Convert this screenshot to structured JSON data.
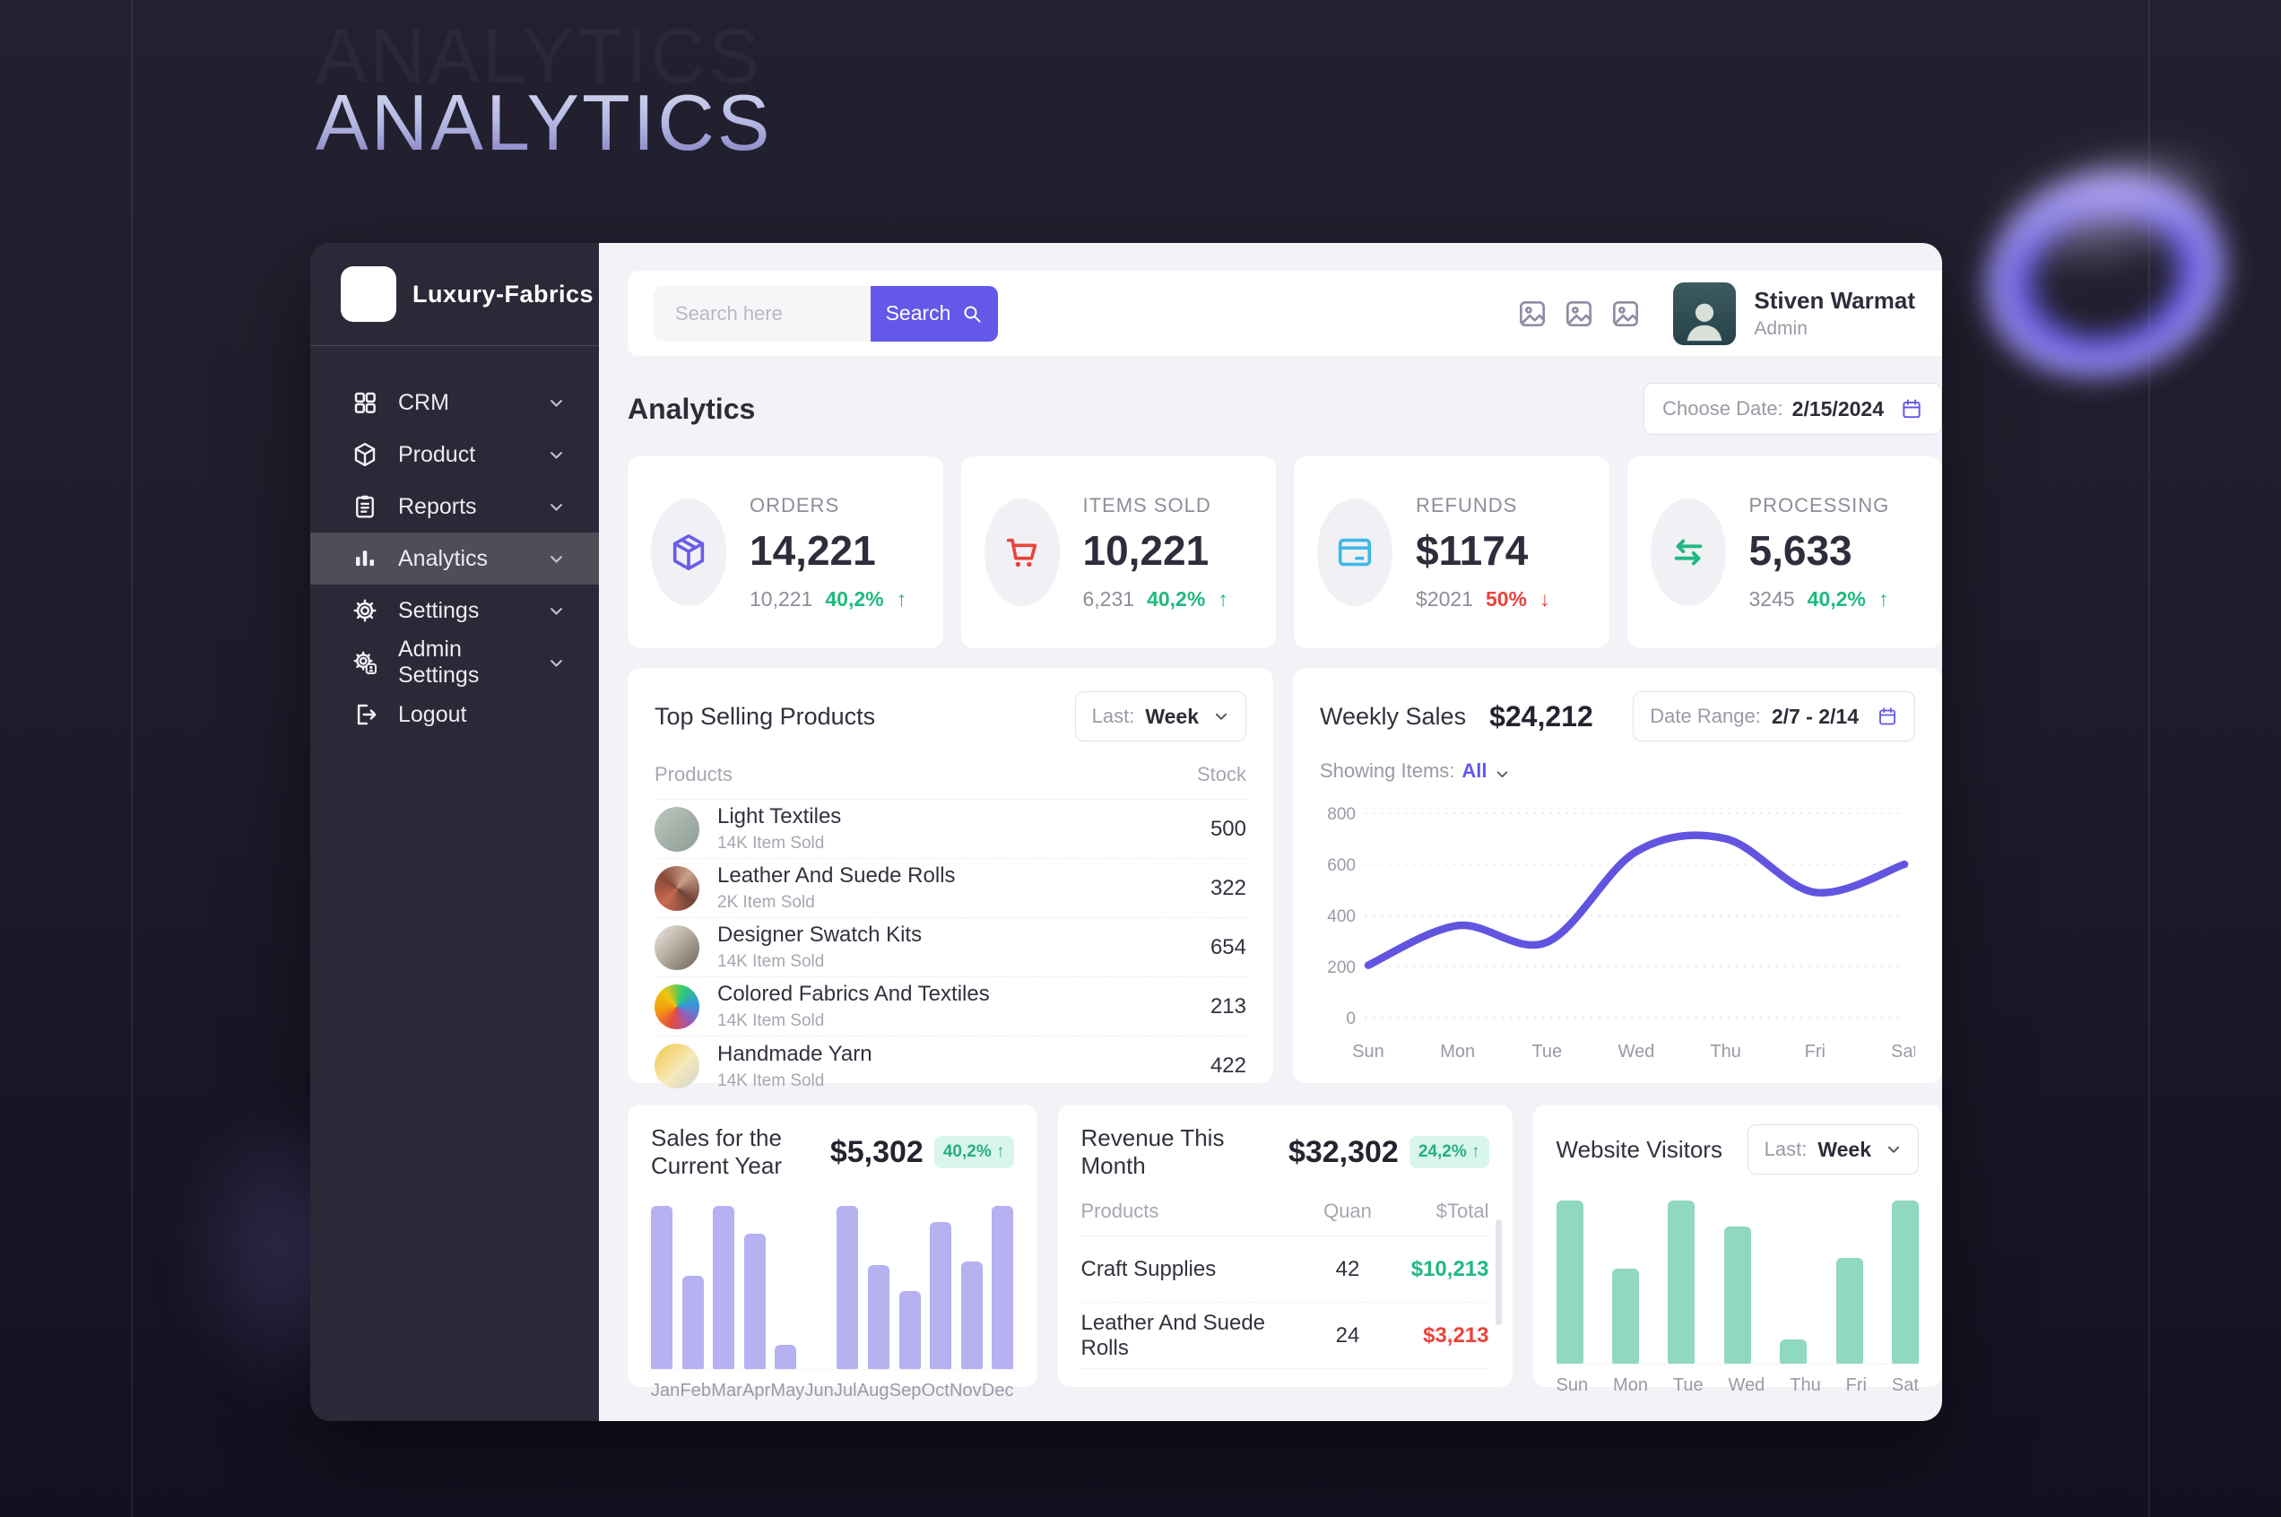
{
  "page": {
    "background_title": "ANALYTICS"
  },
  "sidebar": {
    "brand": {
      "name": "Luxury-Fabrics",
      "icon": "fabric-weave-icon"
    },
    "items": [
      {
        "label": "CRM",
        "icon": "grid-icon",
        "chevron": true,
        "active": false
      },
      {
        "label": "Product",
        "icon": "box-icon",
        "chevron": true,
        "active": false
      },
      {
        "label": "Reports",
        "icon": "clipboard-icon",
        "chevron": true,
        "active": false
      },
      {
        "label": "Analytics",
        "icon": "bar-chart-icon",
        "chevron": true,
        "active": true
      },
      {
        "label": "Settings",
        "icon": "gear-icon",
        "chevron": true,
        "active": false
      },
      {
        "label": "Admin Settings",
        "icon": "admin-gear-icon",
        "chevron": true,
        "active": false
      },
      {
        "label": "Logout",
        "icon": "logout-icon",
        "chevron": false,
        "active": false
      }
    ]
  },
  "topbar": {
    "search_placeholder": "Search here",
    "search_button": "Search",
    "user": {
      "name": "Stiven Warmat",
      "role": "Admin"
    }
  },
  "header": {
    "title": "Analytics",
    "date_label": "Choose Date:",
    "date_value": "2/15/2024"
  },
  "stats": [
    {
      "label": "ORDERS",
      "value": "14,221",
      "sub_value": "10,221",
      "change": "40,2%",
      "direction": "up",
      "icon": "package-icon",
      "accent": "#6c5ce7"
    },
    {
      "label": "ITEMS SOLD",
      "value": "10,221",
      "sub_value": "6,231",
      "change": "40,2%",
      "direction": "up",
      "icon": "cart-icon",
      "accent": "#e8443c"
    },
    {
      "label": "REFUNDS",
      "value": "$1174",
      "sub_value": "$2021",
      "change": "50%",
      "direction": "down",
      "icon": "credit-card-icon",
      "accent": "#3eb7e8"
    },
    {
      "label": "PROCESSING",
      "value": "5,633",
      "sub_value": "3245",
      "change": "40,2%",
      "direction": "up",
      "icon": "swap-icon",
      "accent": "#1fb97f"
    }
  ],
  "top_selling": {
    "title": "Top Selling Products",
    "filter_label": "Last:",
    "filter_value": "Week",
    "columns": [
      "Products",
      "Stock"
    ],
    "rows": [
      {
        "name": "Light Textiles",
        "sub": "14K Item Sold",
        "stock": "500"
      },
      {
        "name": "Leather And Suede Rolls",
        "sub": "2K Item Sold",
        "stock": "322"
      },
      {
        "name": "Designer Swatch Kits",
        "sub": "14K Item Sold",
        "stock": "654"
      },
      {
        "name": "Colored Fabrics And Textiles",
        "sub": "14K Item Sold",
        "stock": "213"
      },
      {
        "name": "Handmade Yarn",
        "sub": "14K Item Sold",
        "stock": "422"
      }
    ]
  },
  "weekly_sales": {
    "title": "Weekly Sales",
    "total": "$24,212",
    "range_label": "Date Range:",
    "range_value": "2/7 - 2/14",
    "showing_label": "Showing Items:",
    "showing_value": "All"
  },
  "sales_year": {
    "title": "Sales for the Current Year",
    "total": "$5,302",
    "badge": "40,2% ↑"
  },
  "revenue_month": {
    "title": "Revenue This Month",
    "total": "$32,302",
    "badge": "24,2% ↑",
    "columns": [
      "Products",
      "Quan",
      "$Total"
    ],
    "rows": [
      {
        "name": "Craft Supplies",
        "quan": "42",
        "total": "$10,213",
        "status": "green"
      },
      {
        "name": "Leather And Suede Rolls",
        "quan": "24",
        "total": "$3,213",
        "status": "red"
      }
    ]
  },
  "visitors": {
    "title": "Website Visitors",
    "filter_label": "Last:",
    "filter_value": "Week"
  },
  "chart_data": [
    {
      "type": "line",
      "title": "Weekly Sales",
      "x": [
        "Sun",
        "Mon",
        "Tue",
        "Wed",
        "Thu",
        "Fri",
        "Sat"
      ],
      "values": [
        205,
        360,
        295,
        650,
        700,
        490,
        600
      ],
      "ylim": [
        0,
        800
      ],
      "yticks": [
        800,
        600,
        400,
        200,
        0
      ],
      "grid": true,
      "line_color": "#6155e0"
    },
    {
      "type": "bar",
      "title": "Sales for the Current Year",
      "categories": [
        "Jan",
        "Feb",
        "Mar",
        "Apr",
        "May",
        "Jun",
        "Jul",
        "Aug",
        "Sep",
        "Oct",
        "Nov",
        "Dec"
      ],
      "values": [
        100,
        57,
        100,
        83,
        15,
        0,
        100,
        64,
        48,
        90,
        66,
        100
      ],
      "ylim": [
        0,
        100
      ],
      "bar_color": "#b6b1f0"
    },
    {
      "type": "bar",
      "title": "Website Visitors",
      "categories": [
        "Sun",
        "Mon",
        "Tue",
        "Wed",
        "Thu",
        "Fri",
        "Sat"
      ],
      "values": [
        100,
        58,
        100,
        84,
        15,
        65,
        100
      ],
      "ylim": [
        0,
        100
      ],
      "bar_color": "#90d8c0"
    }
  ]
}
